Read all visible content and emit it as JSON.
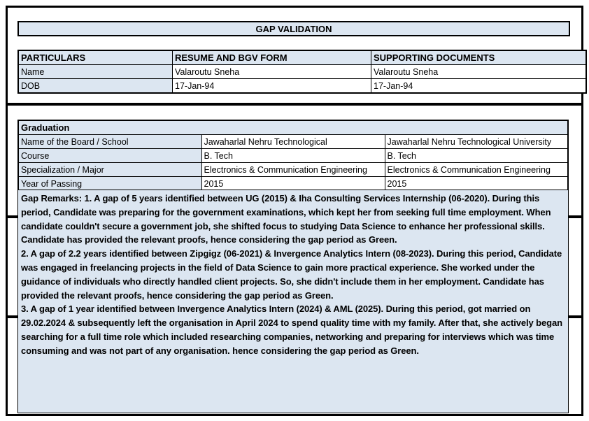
{
  "title": "GAP VALIDATION",
  "colors": {
    "fill_light_blue": "#dce6f1",
    "border_black": "#000000"
  },
  "particulars_table": {
    "headers": [
      "PARTICULARS",
      "RESUME AND BGV FORM",
      "SUPPORTING DOCUMENTS"
    ],
    "rows": [
      {
        "label": "Name",
        "resume": "Valaroutu Sneha",
        "supporting": "Valaroutu Sneha"
      },
      {
        "label": "DOB",
        "resume": "17-Jan-94",
        "supporting": "17-Jan-94"
      }
    ]
  },
  "graduation_table": {
    "section_title": "Graduation",
    "rows": [
      {
        "label": "Name of the Board / School",
        "resume": "Jawaharlal Nehru Technological",
        "supporting": "Jawaharlal Nehru Technological University"
      },
      {
        "label": "Course",
        "resume": "B. Tech",
        "supporting": "B. Tech"
      },
      {
        "label": "Specialization / Major",
        "resume": "Electronics & Communication Engineering",
        "supporting": "Electronics & Communication Engineering"
      },
      {
        "label": "Year of Passing",
        "resume": "2015",
        "supporting": "2015"
      }
    ]
  },
  "gap_remarks": {
    "paragraphs": [
      "Gap Remarks: 1. A gap of 5 years identified between UG (2015) & Iha Consulting Services Internship (06-2020). During this period, Candidate was preparing for the government examinations, which kept her from seeking full time employment. When candidate couldn't secure a government job, she shifted focus to studying Data Science to enhance her professional skills. Candidate has provided the relevant proofs, hence considering the gap period as Green.",
      "2. A gap of 2.2 years identified between Zipgigz (06-2021) & Invergence Analytics Intern (08-2023). During this period, Candidate was engaged in freelancing projects in the field of Data Science to gain more practical experience. She worked under the guidance of individuals who directly handled client projects. So, she didn't include them in her employment. Candidate has provided the relevant proofs, hence considering the gap period as Green.",
      "3. A gap of 1 year identified between Invergence Analytics Intern (2024) & AML (2025). During this period, got married on 29.02.2024 & subsequently left the organisation in April 2024 to spend quality time with my family. After that, she actively began searching for a full time role which included researching companies, networking and preparing for interviews which was time consuming and was not part of any organisation. hence considering the gap period as Green."
    ]
  }
}
